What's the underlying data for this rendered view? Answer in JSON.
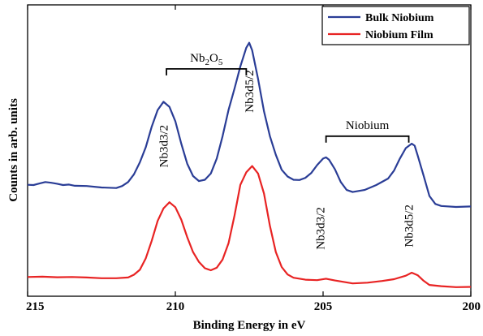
{
  "chart_data": {
    "type": "line",
    "title": "",
    "xlabel": "Binding Energy in eV",
    "ylabel": "Counts in arb. units",
    "xlim": [
      215,
      200
    ],
    "x_reversed": true,
    "ylim": [
      0,
      100
    ],
    "y_ticks_shown": false,
    "grid": false,
    "legend_position": "top-right",
    "x_ticks": [
      {
        "value": 215,
        "label": "215"
      },
      {
        "value": 210,
        "label": "210"
      },
      {
        "value": 205,
        "label": "205"
      },
      {
        "value": 200,
        "label": "200"
      }
    ],
    "series": [
      {
        "name": "Bulk Niobium",
        "color": "#2a3d96",
        "points": [
          [
            215,
            40.5
          ],
          [
            214.8,
            40.4
          ],
          [
            214.6,
            41.0
          ],
          [
            214.4,
            41.6
          ],
          [
            214.2,
            41.3
          ],
          [
            214,
            40.9
          ],
          [
            213.8,
            40.4
          ],
          [
            213.6,
            40.6
          ],
          [
            213.4,
            40.1
          ],
          [
            213,
            40.0
          ],
          [
            212.5,
            39.4
          ],
          [
            212,
            39.2
          ],
          [
            211.8,
            40.0
          ],
          [
            211.6,
            41.6
          ],
          [
            211.4,
            44.7
          ],
          [
            211.2,
            49.5
          ],
          [
            211,
            55.6
          ],
          [
            210.8,
            63.8
          ],
          [
            210.6,
            70.5
          ],
          [
            210.4,
            73.8
          ],
          [
            210.2,
            71.8
          ],
          [
            210,
            66.0
          ],
          [
            209.8,
            57.0
          ],
          [
            209.6,
            49.0
          ],
          [
            209.4,
            44.0
          ],
          [
            209.2,
            42.0
          ],
          [
            209,
            42.5
          ],
          [
            208.8,
            45.0
          ],
          [
            208.6,
            51.0
          ],
          [
            208.4,
            60.0
          ],
          [
            208.2,
            70.5
          ],
          [
            208,
            79.0
          ],
          [
            207.8,
            88.0
          ],
          [
            207.6,
            95.5
          ],
          [
            207.5,
            97.5
          ],
          [
            207.4,
            94.5
          ],
          [
            207.2,
            83.0
          ],
          [
            207,
            70.0
          ],
          [
            206.8,
            60.0
          ],
          [
            206.6,
            52.5
          ],
          [
            206.4,
            46.5
          ],
          [
            206.2,
            43.8
          ],
          [
            206,
            42.5
          ],
          [
            205.8,
            42.4
          ],
          [
            205.6,
            43.3
          ],
          [
            205.4,
            45.2
          ],
          [
            205.2,
            48.4
          ],
          [
            205,
            51.0
          ],
          [
            204.9,
            51.5
          ],
          [
            204.8,
            50.6
          ],
          [
            204.6,
            46.7
          ],
          [
            204.4,
            41.6
          ],
          [
            204.2,
            38.4
          ],
          [
            204,
            37.6
          ],
          [
            203.6,
            38.4
          ],
          [
            203.2,
            40.4
          ],
          [
            202.8,
            43.0
          ],
          [
            202.6,
            46.2
          ],
          [
            202.4,
            51.0
          ],
          [
            202.2,
            55.2
          ],
          [
            202,
            57.0
          ],
          [
            201.9,
            56.2
          ],
          [
            201.8,
            52.3
          ],
          [
            201.6,
            44.2
          ],
          [
            201.4,
            36.0
          ],
          [
            201.2,
            32.8
          ],
          [
            201,
            32.0
          ],
          [
            200.5,
            31.6
          ],
          [
            200,
            31.8
          ]
        ]
      },
      {
        "name": "Niobium Film",
        "color": "#e82323",
        "points": [
          [
            215,
            3.5
          ],
          [
            214.5,
            3.6
          ],
          [
            214,
            3.4
          ],
          [
            213.5,
            3.5
          ],
          [
            213,
            3.3
          ],
          [
            212.5,
            3.0
          ],
          [
            212,
            3.0
          ],
          [
            211.6,
            3.3
          ],
          [
            211.4,
            4.4
          ],
          [
            211.2,
            6.4
          ],
          [
            211,
            11.0
          ],
          [
            210.8,
            18.0
          ],
          [
            210.6,
            26.0
          ],
          [
            210.4,
            31.0
          ],
          [
            210.2,
            33.5
          ],
          [
            210,
            31.5
          ],
          [
            209.8,
            26.5
          ],
          [
            209.6,
            19.5
          ],
          [
            209.4,
            13.5
          ],
          [
            209.2,
            9.5
          ],
          [
            209,
            7.0
          ],
          [
            208.8,
            6.2
          ],
          [
            208.6,
            7.2
          ],
          [
            208.4,
            10.5
          ],
          [
            208.2,
            17.0
          ],
          [
            208,
            28.0
          ],
          [
            207.8,
            40.5
          ],
          [
            207.6,
            45.5
          ],
          [
            207.4,
            48.0
          ],
          [
            207.2,
            45.0
          ],
          [
            207,
            37.0
          ],
          [
            206.8,
            24.0
          ],
          [
            206.6,
            13.5
          ],
          [
            206.4,
            7.5
          ],
          [
            206.2,
            4.5
          ],
          [
            206,
            3.2
          ],
          [
            205.6,
            2.4
          ],
          [
            205.2,
            2.2
          ],
          [
            204.9,
            2.8
          ],
          [
            204.6,
            2.1
          ],
          [
            204,
            0.9
          ],
          [
            203.5,
            1.2
          ],
          [
            203,
            1.9
          ],
          [
            202.6,
            2.6
          ],
          [
            202.2,
            4.0
          ],
          [
            202,
            5.2
          ],
          [
            201.8,
            4.2
          ],
          [
            201.6,
            2.0
          ],
          [
            201.4,
            0.3
          ],
          [
            201,
            -0.2
          ],
          [
            200.5,
            -0.6
          ],
          [
            200,
            -0.5
          ]
        ]
      }
    ],
    "annotations": [
      {
        "text": "Nb3d3/2",
        "x": 210.4,
        "y": 56,
        "rotated": true
      },
      {
        "text": "Nb3d5/2",
        "x": 207.5,
        "y": 78,
        "rotated": true
      },
      {
        "text": "Nb3d3/2",
        "x": 205.1,
        "y": 23,
        "rotated": true
      },
      {
        "text": "Nb3d5/2",
        "x": 202.1,
        "y": 24,
        "rotated": true
      }
    ],
    "brackets": [
      {
        "label_base": "Nb",
        "sub1": "2",
        "mid": "O",
        "sub2": "5",
        "x1": 210.3,
        "x2": 207.6,
        "y": 87
      },
      {
        "label": "Niobium",
        "x1": 204.9,
        "x2": 202.1,
        "y": 60
      }
    ]
  }
}
